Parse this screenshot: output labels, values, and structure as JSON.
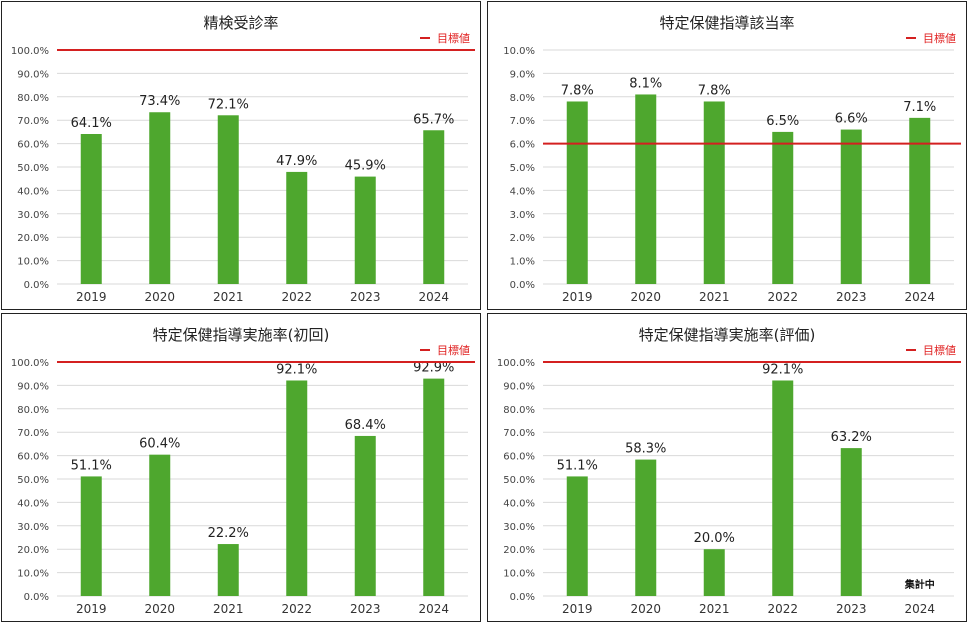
{
  "legend_label": "目標値",
  "colors": {
    "bar": "#4ea72e",
    "target": "#d42020",
    "grid": "#d9d9d9"
  },
  "chart_data": [
    {
      "type": "bar",
      "title": "精検受診率",
      "categories": [
        "2019",
        "2020",
        "2021",
        "2022",
        "2023",
        "2024"
      ],
      "values": [
        64.1,
        73.4,
        72.1,
        47.9,
        45.9,
        65.7
      ],
      "data_labels": [
        "64.1%",
        "73.4%",
        "72.1%",
        "47.9%",
        "45.9%",
        "65.7%"
      ],
      "ylim": [
        0,
        100
      ],
      "yticks": [
        "0.0%",
        "10.0%",
        "20.0%",
        "30.0%",
        "40.0%",
        "50.0%",
        "60.0%",
        "70.0%",
        "80.0%",
        "90.0%",
        "100.0%"
      ],
      "target": 100,
      "grid": true,
      "legend": "top-right"
    },
    {
      "type": "bar",
      "title": "特定保健指導該当率",
      "categories": [
        "2019",
        "2020",
        "2021",
        "2022",
        "2023",
        "2024"
      ],
      "values": [
        7.8,
        8.1,
        7.8,
        6.5,
        6.6,
        7.1
      ],
      "data_labels": [
        "7.8%",
        "8.1%",
        "7.8%",
        "6.5%",
        "6.6%",
        "7.1%"
      ],
      "ylim": [
        0,
        10
      ],
      "yticks": [
        "0.0%",
        "1.0%",
        "2.0%",
        "3.0%",
        "4.0%",
        "5.0%",
        "6.0%",
        "7.0%",
        "8.0%",
        "9.0%",
        "10.0%"
      ],
      "target": 6,
      "grid": true,
      "legend": "top-right"
    },
    {
      "type": "bar",
      "title": "特定保健指導実施率(初回)",
      "categories": [
        "2019",
        "2020",
        "2021",
        "2022",
        "2023",
        "2024"
      ],
      "values": [
        51.1,
        60.4,
        22.2,
        92.1,
        68.4,
        92.9
      ],
      "data_labels": [
        "51.1%",
        "60.4%",
        "22.2%",
        "92.1%",
        "68.4%",
        "92.9%"
      ],
      "ylim": [
        0,
        100
      ],
      "yticks": [
        "0.0%",
        "10.0%",
        "20.0%",
        "30.0%",
        "40.0%",
        "50.0%",
        "60.0%",
        "70.0%",
        "80.0%",
        "90.0%",
        "100.0%"
      ],
      "target": 100,
      "grid": true,
      "legend": "top-right"
    },
    {
      "type": "bar",
      "title": "特定保健指導実施率(評価)",
      "categories": [
        "2019",
        "2020",
        "2021",
        "2022",
        "2023",
        "2024"
      ],
      "values": [
        51.1,
        58.3,
        20.0,
        92.1,
        63.2,
        null
      ],
      "data_labels": [
        "51.1%",
        "58.3%",
        "20.0%",
        "92.1%",
        "63.2%",
        "集計中"
      ],
      "ylim": [
        0,
        100
      ],
      "yticks": [
        "0.0%",
        "10.0%",
        "20.0%",
        "30.0%",
        "40.0%",
        "50.0%",
        "60.0%",
        "70.0%",
        "80.0%",
        "90.0%",
        "100.0%"
      ],
      "target": 100,
      "grid": true,
      "legend": "top-right"
    }
  ]
}
